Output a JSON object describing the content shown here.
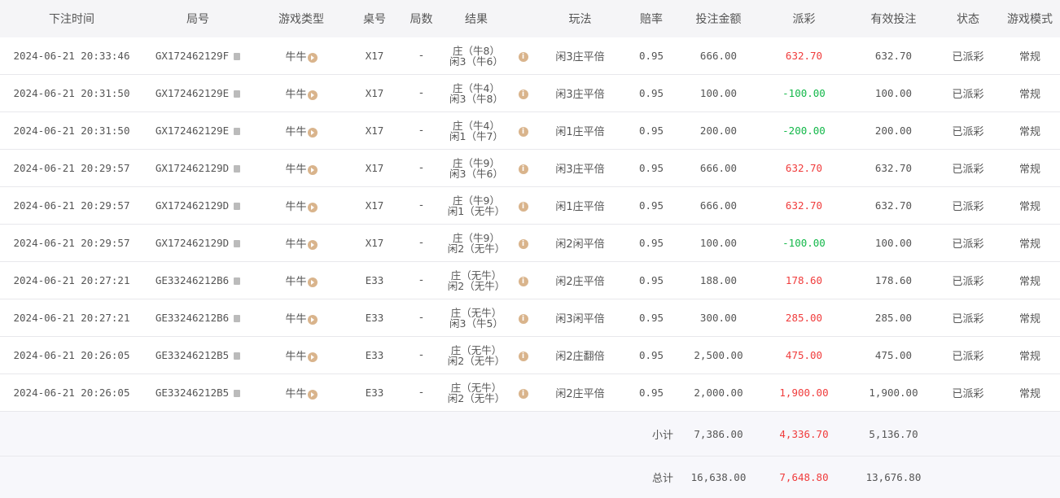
{
  "columns": [
    "下注时间",
    "局号",
    "游戏类型",
    "桌号",
    "局数",
    "结果",
    "",
    "玩法",
    "赔率",
    "投注金额",
    "派彩",
    "有效投注",
    "状态",
    "游戏模式"
  ],
  "rows": [
    {
      "time": "2024-06-21 20:33:46",
      "id": "GX172462129F",
      "game": "牛牛",
      "table": "X17",
      "rounds": "-",
      "result1": "庄（牛8）",
      "result2": "闲3（牛6）",
      "play": "闲3庄平倍",
      "odds": "0.95",
      "amount": "666.00",
      "payout": "632.70",
      "payout_sign": "pos",
      "valid": "632.70",
      "status": "已派彩",
      "mode": "常规"
    },
    {
      "time": "2024-06-21 20:31:50",
      "id": "GX172462129E",
      "game": "牛牛",
      "table": "X17",
      "rounds": "-",
      "result1": "庄（牛4）",
      "result2": "闲3（牛8）",
      "play": "闲3庄平倍",
      "odds": "0.95",
      "amount": "100.00",
      "payout": "-100.00",
      "payout_sign": "neg",
      "valid": "100.00",
      "status": "已派彩",
      "mode": "常规"
    },
    {
      "time": "2024-06-21 20:31:50",
      "id": "GX172462129E",
      "game": "牛牛",
      "table": "X17",
      "rounds": "-",
      "result1": "庄（牛4）",
      "result2": "闲1（牛7）",
      "play": "闲1庄平倍",
      "odds": "0.95",
      "amount": "200.00",
      "payout": "-200.00",
      "payout_sign": "neg",
      "valid": "200.00",
      "status": "已派彩",
      "mode": "常规"
    },
    {
      "time": "2024-06-21 20:29:57",
      "id": "GX172462129D",
      "game": "牛牛",
      "table": "X17",
      "rounds": "-",
      "result1": "庄（牛9）",
      "result2": "闲3（牛6）",
      "play": "闲3庄平倍",
      "odds": "0.95",
      "amount": "666.00",
      "payout": "632.70",
      "payout_sign": "pos",
      "valid": "632.70",
      "status": "已派彩",
      "mode": "常规"
    },
    {
      "time": "2024-06-21 20:29:57",
      "id": "GX172462129D",
      "game": "牛牛",
      "table": "X17",
      "rounds": "-",
      "result1": "庄（牛9）",
      "result2": "闲1（无牛）",
      "play": "闲1庄平倍",
      "odds": "0.95",
      "amount": "666.00",
      "payout": "632.70",
      "payout_sign": "pos",
      "valid": "632.70",
      "status": "已派彩",
      "mode": "常规"
    },
    {
      "time": "2024-06-21 20:29:57",
      "id": "GX172462129D",
      "game": "牛牛",
      "table": "X17",
      "rounds": "-",
      "result1": "庄（牛9）",
      "result2": "闲2（无牛）",
      "play": "闲2闲平倍",
      "odds": "0.95",
      "amount": "100.00",
      "payout": "-100.00",
      "payout_sign": "neg",
      "valid": "100.00",
      "status": "已派彩",
      "mode": "常规"
    },
    {
      "time": "2024-06-21 20:27:21",
      "id": "GE33246212B6",
      "game": "牛牛",
      "table": "E33",
      "rounds": "-",
      "result1": "庄（无牛）",
      "result2": "闲2（无牛）",
      "play": "闲2庄平倍",
      "odds": "0.95",
      "amount": "188.00",
      "payout": "178.60",
      "payout_sign": "pos",
      "valid": "178.60",
      "status": "已派彩",
      "mode": "常规"
    },
    {
      "time": "2024-06-21 20:27:21",
      "id": "GE33246212B6",
      "game": "牛牛",
      "table": "E33",
      "rounds": "-",
      "result1": "庄（无牛）",
      "result2": "闲3（牛5）",
      "play": "闲3闲平倍",
      "odds": "0.95",
      "amount": "300.00",
      "payout": "285.00",
      "payout_sign": "pos",
      "valid": "285.00",
      "status": "已派彩",
      "mode": "常规"
    },
    {
      "time": "2024-06-21 20:26:05",
      "id": "GE33246212B5",
      "game": "牛牛",
      "table": "E33",
      "rounds": "-",
      "result1": "庄（无牛）",
      "result2": "闲2（无牛）",
      "play": "闲2庄翻倍",
      "odds": "0.95",
      "amount": "2,500.00",
      "payout": "475.00",
      "payout_sign": "pos",
      "valid": "475.00",
      "status": "已派彩",
      "mode": "常规"
    },
    {
      "time": "2024-06-21 20:26:05",
      "id": "GE33246212B5",
      "game": "牛牛",
      "table": "E33",
      "rounds": "-",
      "result1": "庄（无牛）",
      "result2": "闲2（无牛）",
      "play": "闲2庄平倍",
      "odds": "0.95",
      "amount": "2,000.00",
      "payout": "1,900.00",
      "payout_sign": "pos",
      "valid": "1,900.00",
      "status": "已派彩",
      "mode": "常规"
    }
  ],
  "subtotal": {
    "label": "小计",
    "amount": "7,386.00",
    "payout": "4,336.70",
    "valid": "5,136.70"
  },
  "total": {
    "label": "总计",
    "amount": "16,638.00",
    "payout": "7,648.80",
    "valid": "13,676.80"
  },
  "colors": {
    "positive": "#f03c3c",
    "negative": "#14b84a",
    "icon": "#d9b48c"
  }
}
